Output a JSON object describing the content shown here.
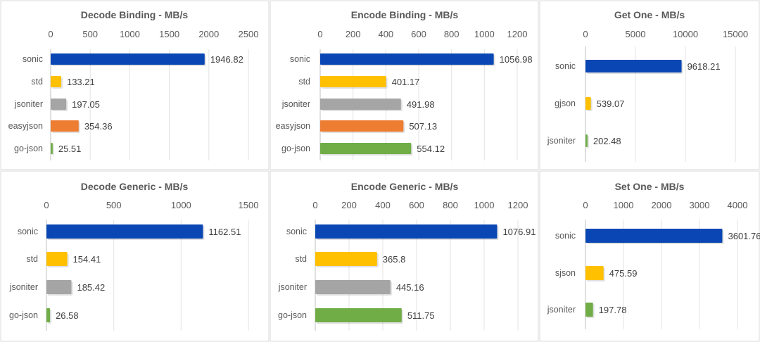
{
  "chart_data": [
    {
      "type": "bar",
      "orientation": "horizontal",
      "title": "Decode Binding - MB/s",
      "categories": [
        "sonic",
        "std",
        "jsoniter",
        "easyjson",
        "go-json"
      ],
      "values": [
        1946.82,
        133.21,
        197.05,
        354.36,
        25.51
      ],
      "value_labels": [
        "1946.82",
        "133.21",
        "197.05",
        "354.36",
        "25.51"
      ],
      "colors": [
        "#0a47b4",
        "#ffc000",
        "#a5a5a5",
        "#ed7d31",
        "#70ad47"
      ],
      "xlim": [
        0,
        2500
      ],
      "ticks": [
        0,
        500,
        1000,
        1500,
        2000,
        2500
      ],
      "grid": true,
      "axis_position": "top"
    },
    {
      "type": "bar",
      "orientation": "horizontal",
      "title": "Encode Binding - MB/s",
      "categories": [
        "sonic",
        "std",
        "jsoniter",
        "easyjson",
        "go-json"
      ],
      "values": [
        1056.98,
        401.17,
        491.98,
        507.13,
        554.12
      ],
      "value_labels": [
        "1056.98",
        "401.17",
        "491.98",
        "507.13",
        "554.12"
      ],
      "colors": [
        "#0a47b4",
        "#ffc000",
        "#a5a5a5",
        "#ed7d31",
        "#70ad47"
      ],
      "xlim": [
        0,
        1200
      ],
      "ticks": [
        0,
        200,
        400,
        600,
        800,
        1000,
        1200
      ],
      "grid": true,
      "axis_position": "top"
    },
    {
      "type": "bar",
      "orientation": "horizontal",
      "title": "Get One - MB/s",
      "categories": [
        "sonic",
        "gjson",
        "jsoniter"
      ],
      "values": [
        9618.21,
        539.07,
        202.48
      ],
      "value_labels": [
        "9618.21",
        "539.07",
        "202.48"
      ],
      "colors": [
        "#0a47b4",
        "#ffc000",
        "#70ad47"
      ],
      "xlim": [
        0,
        15000
      ],
      "ticks": [
        0,
        5000,
        10000,
        15000
      ],
      "grid": true,
      "axis_position": "top"
    },
    {
      "type": "bar",
      "orientation": "horizontal",
      "title": "Decode Generic - MB/s",
      "categories": [
        "sonic",
        "std",
        "jsoniter",
        "go-json"
      ],
      "values": [
        1162.51,
        154.41,
        185.42,
        26.58
      ],
      "value_labels": [
        "1162.51",
        "154.41",
        "185.42",
        "26.58"
      ],
      "colors": [
        "#0a47b4",
        "#ffc000",
        "#a5a5a5",
        "#70ad47"
      ],
      "xlim": [
        0,
        1500
      ],
      "ticks": [
        0,
        500,
        1000,
        1500
      ],
      "grid": true,
      "axis_position": "top"
    },
    {
      "type": "bar",
      "orientation": "horizontal",
      "title": "Encode Generic - MB/s",
      "categories": [
        "sonic",
        "std",
        "jsoniter",
        "go-json"
      ],
      "values": [
        1076.91,
        365.8,
        445.16,
        511.75
      ],
      "value_labels": [
        "1076.91",
        "365.8",
        "445.16",
        "511.75"
      ],
      "colors": [
        "#0a47b4",
        "#ffc000",
        "#a5a5a5",
        "#70ad47"
      ],
      "xlim": [
        0,
        1200
      ],
      "ticks": [
        0,
        200,
        400,
        600,
        800,
        1000,
        1200
      ],
      "grid": true,
      "axis_position": "top"
    },
    {
      "type": "bar",
      "orientation": "horizontal",
      "title": "Set One - MB/s",
      "categories": [
        "sonic",
        "sjson",
        "jsoniter"
      ],
      "values": [
        3601.76,
        475.59,
        197.78
      ],
      "value_labels": [
        "3601.76",
        "475.59",
        "197.78"
      ],
      "colors": [
        "#0a47b4",
        "#ffc000",
        "#70ad47"
      ],
      "xlim": [
        0,
        4000
      ],
      "ticks": [
        0,
        1000,
        2000,
        3000,
        4000
      ],
      "grid": true,
      "axis_position": "top"
    }
  ]
}
